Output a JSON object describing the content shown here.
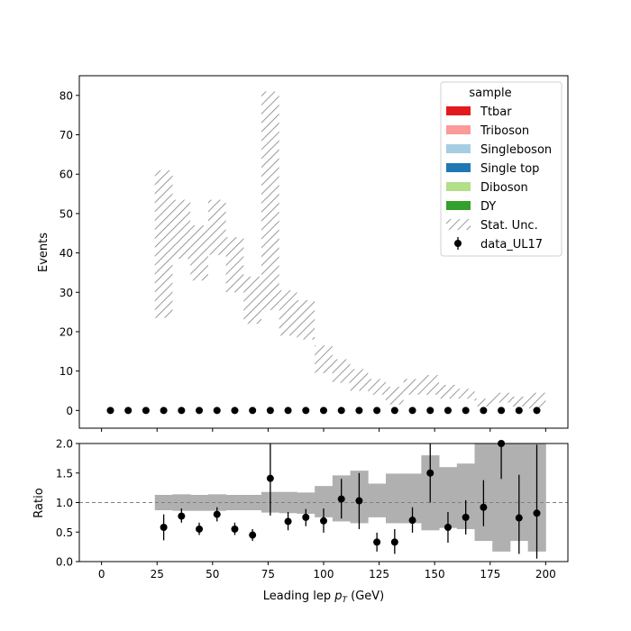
{
  "chart_data": {
    "type": "histogram-ratio",
    "top": {
      "ylabel": "Events",
      "ylim": [
        -4.5,
        85
      ],
      "yticks": [
        "0",
        "10",
        "20",
        "30",
        "40",
        "50",
        "60",
        "70",
        "80"
      ],
      "legend": {
        "title": "sample",
        "placement": "top-right",
        "entries": [
          {
            "label": "Ttbar",
            "kind": "patch",
            "color": "#e31a1c"
          },
          {
            "label": "Triboson",
            "kind": "patch",
            "color": "#fb9a99"
          },
          {
            "label": "Singleboson",
            "kind": "patch",
            "color": "#a6cee3"
          },
          {
            "label": "Single top",
            "kind": "patch",
            "color": "#1f78b4"
          },
          {
            "label": "Diboson",
            "kind": "patch",
            "color": "#b2df8a"
          },
          {
            "label": "DY",
            "kind": "patch",
            "color": "#33a02c"
          },
          {
            "label": "Stat. Unc.",
            "kind": "hatch",
            "color": "#808080"
          },
          {
            "label": "data_UL17",
            "kind": "marker",
            "color": "#000000"
          }
        ]
      },
      "stat_unc_bins": [
        {
          "x0": 24,
          "x1": 32,
          "lo": 23.5,
          "hi": 61
        },
        {
          "x0": 32,
          "x1": 40,
          "lo": 38.5,
          "hi": 53.5
        },
        {
          "x0": 40,
          "x1": 48,
          "lo": 33,
          "hi": 47
        },
        {
          "x0": 48,
          "x1": 56,
          "lo": 39.5,
          "hi": 53.5
        },
        {
          "x0": 56,
          "x1": 64,
          "lo": 30,
          "hi": 44
        },
        {
          "x0": 64,
          "x1": 72,
          "lo": 22,
          "hi": 34
        },
        {
          "x0": 72,
          "x1": 80,
          "lo": 25.5,
          "hi": 81
        },
        {
          "x0": 80,
          "x1": 88,
          "lo": 19,
          "hi": 30.5
        },
        {
          "x0": 88,
          "x1": 96,
          "lo": 18,
          "hi": 28
        },
        {
          "x0": 96,
          "x1": 104,
          "lo": 9.5,
          "hi": 16.5
        },
        {
          "x0": 104,
          "x1": 112,
          "lo": 7,
          "hi": 13
        },
        {
          "x0": 112,
          "x1": 120,
          "lo": 5,
          "hi": 10.5
        },
        {
          "x0": 120,
          "x1": 128,
          "lo": 4,
          "hi": 8
        },
        {
          "x0": 128,
          "x1": 136,
          "lo": 1.5,
          "hi": 6
        },
        {
          "x0": 136,
          "x1": 144,
          "lo": 4,
          "hi": 8
        },
        {
          "x0": 144,
          "x1": 152,
          "lo": 4,
          "hi": 9
        },
        {
          "x0": 152,
          "x1": 160,
          "lo": 3,
          "hi": 6.5
        },
        {
          "x0": 160,
          "x1": 168,
          "lo": 3,
          "hi": 5.5
        },
        {
          "x0": 168,
          "x1": 176,
          "lo": 1,
          "hi": 3
        },
        {
          "x0": 176,
          "x1": 184,
          "lo": 2,
          "hi": 4.5
        },
        {
          "x0": 184,
          "x1": 192,
          "lo": 1,
          "hi": 3.5
        },
        {
          "x0": 192,
          "x1": 200,
          "lo": 0.5,
          "hi": 4.5
        }
      ],
      "data_points": {
        "name": "data_UL17",
        "x": [
          4,
          12,
          20,
          28,
          36,
          44,
          52,
          60,
          68,
          76,
          84,
          92,
          100,
          108,
          116,
          124,
          132,
          140,
          148,
          156,
          164,
          172,
          180,
          188,
          196
        ],
        "y": [
          0,
          0,
          0,
          0,
          0,
          0,
          0,
          0,
          0,
          0,
          0,
          0,
          0,
          0,
          0,
          0,
          0,
          0,
          0,
          0,
          0,
          0,
          0,
          0,
          0
        ]
      }
    },
    "bottom": {
      "ylabel": "Ratio",
      "ylim": [
        0,
        2
      ],
      "yticks": [
        "0.0",
        "0.5",
        "1.0",
        "1.5",
        "2.0"
      ],
      "reference_line": 1.0,
      "unc_band": [
        {
          "x0": 24,
          "x1": 32,
          "lo": 0.87,
          "hi": 1.13
        },
        {
          "x0": 32,
          "x1": 40,
          "lo": 0.86,
          "hi": 1.14
        },
        {
          "x0": 40,
          "x1": 48,
          "lo": 0.86,
          "hi": 1.13
        },
        {
          "x0": 48,
          "x1": 56,
          "lo": 0.86,
          "hi": 1.14
        },
        {
          "x0": 56,
          "x1": 64,
          "lo": 0.87,
          "hi": 1.13
        },
        {
          "x0": 64,
          "x1": 72,
          "lo": 0.87,
          "hi": 1.13
        },
        {
          "x0": 72,
          "x1": 80,
          "lo": 0.83,
          "hi": 1.18
        },
        {
          "x0": 80,
          "x1": 88,
          "lo": 0.82,
          "hi": 1.18
        },
        {
          "x0": 88,
          "x1": 96,
          "lo": 0.81,
          "hi": 1.17
        },
        {
          "x0": 96,
          "x1": 104,
          "lo": 0.75,
          "hi": 1.28
        },
        {
          "x0": 104,
          "x1": 112,
          "lo": 0.68,
          "hi": 1.46
        },
        {
          "x0": 112,
          "x1": 120,
          "lo": 0.65,
          "hi": 1.54
        },
        {
          "x0": 120,
          "x1": 128,
          "lo": 0.75,
          "hi": 1.32
        },
        {
          "x0": 128,
          "x1": 136,
          "lo": 0.65,
          "hi": 1.49
        },
        {
          "x0": 136,
          "x1": 144,
          "lo": 0.65,
          "hi": 1.49
        },
        {
          "x0": 144,
          "x1": 152,
          "lo": 0.53,
          "hi": 1.8
        },
        {
          "x0": 152,
          "x1": 160,
          "lo": 0.57,
          "hi": 1.6
        },
        {
          "x0": 160,
          "x1": 168,
          "lo": 0.55,
          "hi": 1.66
        },
        {
          "x0": 168,
          "x1": 176,
          "lo": 0.35,
          "hi": 2.0
        },
        {
          "x0": 176,
          "x1": 184,
          "lo": 0.17,
          "hi": 2.0
        },
        {
          "x0": 184,
          "x1": 192,
          "lo": 0.35,
          "hi": 2.0
        },
        {
          "x0": 192,
          "x1": 200,
          "lo": 0.17,
          "hi": 2.0
        }
      ],
      "ratio_points": [
        {
          "x": 28,
          "y": 0.58,
          "lo": 0.36,
          "hi": 0.8
        },
        {
          "x": 36,
          "y": 0.77,
          "lo": 0.66,
          "hi": 0.9
        },
        {
          "x": 44,
          "y": 0.55,
          "lo": 0.45,
          "hi": 0.66
        },
        {
          "x": 52,
          "y": 0.8,
          "lo": 0.68,
          "hi": 0.92
        },
        {
          "x": 60,
          "y": 0.55,
          "lo": 0.45,
          "hi": 0.66
        },
        {
          "x": 68,
          "y": 0.45,
          "lo": 0.35,
          "hi": 0.55
        },
        {
          "x": 76,
          "y": 1.41,
          "lo": 0.78,
          "hi": 2.0
        },
        {
          "x": 84,
          "y": 0.68,
          "lo": 0.53,
          "hi": 0.84
        },
        {
          "x": 92,
          "y": 0.75,
          "lo": 0.6,
          "hi": 0.89
        },
        {
          "x": 100,
          "y": 0.69,
          "lo": 0.49,
          "hi": 0.9
        },
        {
          "x": 108,
          "y": 1.06,
          "lo": 0.73,
          "hi": 1.4
        },
        {
          "x": 116,
          "y": 1.03,
          "lo": 0.55,
          "hi": 1.5
        },
        {
          "x": 124,
          "y": 0.33,
          "lo": 0.17,
          "hi": 0.49
        },
        {
          "x": 132,
          "y": 0.33,
          "lo": 0.13,
          "hi": 0.55
        },
        {
          "x": 140,
          "y": 0.7,
          "lo": 0.49,
          "hi": 0.92
        },
        {
          "x": 148,
          "y": 1.5,
          "lo": 1.0,
          "hi": 2.0
        },
        {
          "x": 156,
          "y": 0.58,
          "lo": 0.32,
          "hi": 0.84
        },
        {
          "x": 164,
          "y": 0.75,
          "lo": 0.46,
          "hi": 1.04
        },
        {
          "x": 172,
          "y": 0.92,
          "lo": 0.6,
          "hi": 1.38
        },
        {
          "x": 180,
          "y": 2.0,
          "lo": 1.4,
          "hi": 2.0
        },
        {
          "x": 188,
          "y": 0.74,
          "lo": 0.13,
          "hi": 1.47
        },
        {
          "x": 196,
          "y": 0.82,
          "lo": 0.05,
          "hi": 1.98
        }
      ]
    },
    "x_axis": {
      "xlabel_main": "Leading lep ",
      "xlabel_math": "p",
      "xlabel_sub": "T",
      "xlabel_unit": " (GeV)",
      "xlim": [
        -10,
        210
      ],
      "xticks": [
        "0",
        "25",
        "50",
        "75",
        "100",
        "125",
        "150",
        "175",
        "200"
      ]
    }
  }
}
